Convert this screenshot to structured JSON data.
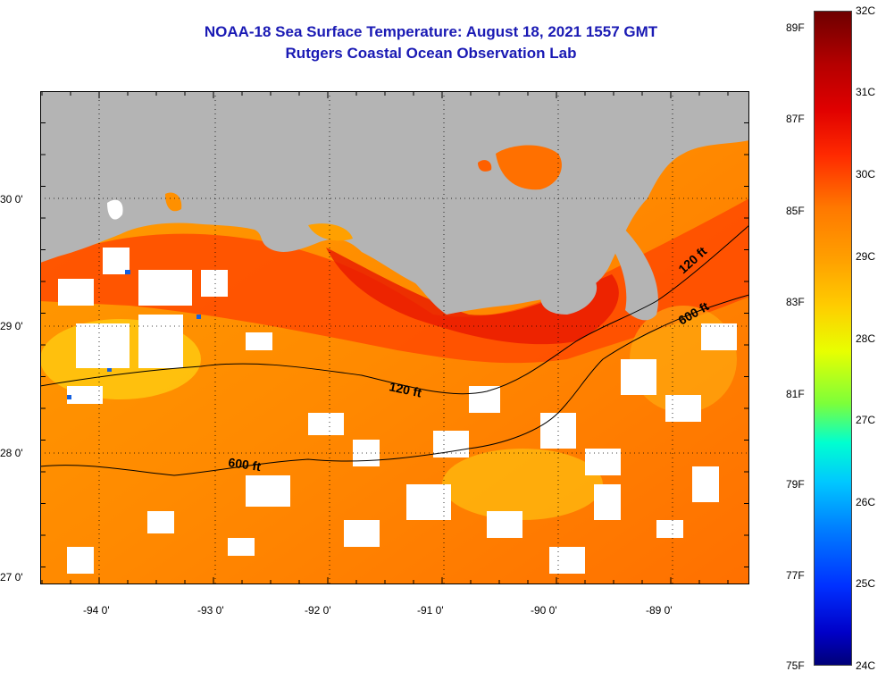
{
  "title": {
    "line1": "NOAA-18 Sea Surface Temperature:  August 18, 2021 1557 GMT",
    "line2": "Rutgers Coastal Ocean Observation Lab"
  },
  "map": {
    "lat_labels": [
      "30 0'",
      "29 0'",
      "28 0'",
      "27 0'"
    ],
    "lon_labels": [
      "-94 0'",
      "-93 0'",
      "-92 0'",
      "-91 0'",
      "-90 0'",
      "-89 0'"
    ],
    "isobaths": [
      {
        "label": "120 ft",
        "depth_ft": 120
      },
      {
        "label": "600 ft",
        "depth_ft": 600
      },
      {
        "label": "120 ft",
        "depth_ft": 120
      },
      {
        "label": "600 ft",
        "depth_ft": 600
      }
    ],
    "colors": {
      "land": "#b4b4b4",
      "cloud": "#ffffff",
      "title": "#1a1ab4"
    }
  },
  "colorbar": {
    "fahrenheit_labels": [
      "89F",
      "87F",
      "85F",
      "83F",
      "81F",
      "79F",
      "77F",
      "75F"
    ],
    "celsius_labels": [
      "32C",
      "31C",
      "30C",
      "29C",
      "28C",
      "27C",
      "26C",
      "25C",
      "24C"
    ]
  }
}
